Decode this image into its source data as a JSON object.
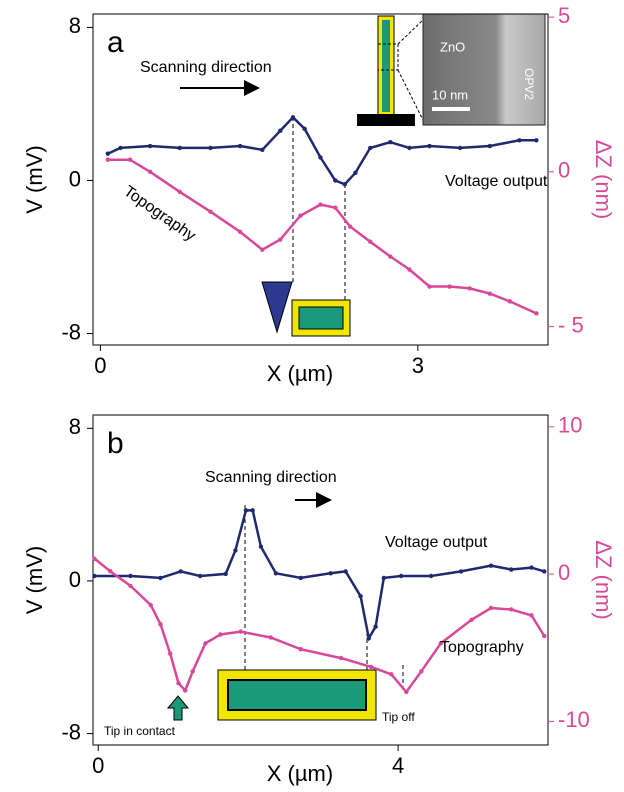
{
  "chart_data": [
    {
      "type": "line",
      "panel_label": "a",
      "xlabel": "X (µm)",
      "ylabel": "V (mV)",
      "y2label": "ΔZ (nm)",
      "xlim": [
        -0.07,
        4.23
      ],
      "xticks": [
        0,
        3
      ],
      "ylim": [
        -8.6,
        8.7
      ],
      "yticks": [
        -8,
        0,
        8
      ],
      "y2lim": [
        -5.6,
        5.1
      ],
      "y2ticks": [
        {
          "value": -5,
          "label": "- 5"
        },
        0,
        5
      ],
      "series": [
        {
          "name": "Voltage output",
          "color": "#1f2a6e",
          "axis": "y",
          "x": [
            0.07,
            0.19,
            0.47,
            0.75,
            1.04,
            1.32,
            1.53,
            1.7,
            1.82,
            1.93,
            2.08,
            2.22,
            2.31,
            2.41,
            2.55,
            2.74,
            2.92,
            3.11,
            3.4,
            3.68,
            3.96,
            4.12
          ],
          "values": [
            1.4,
            1.7,
            1.8,
            1.7,
            1.7,
            1.8,
            1.6,
            2.6,
            3.3,
            2.7,
            1.2,
            0.0,
            -0.2,
            0.4,
            1.7,
            2.0,
            1.7,
            1.8,
            1.7,
            1.8,
            2.1,
            2.1
          ]
        },
        {
          "name": "Topography",
          "color": "#d9479a",
          "axis": "y2",
          "x": [
            0.07,
            0.28,
            0.47,
            0.75,
            1.04,
            1.32,
            1.53,
            1.7,
            1.89,
            2.08,
            2.22,
            2.36,
            2.55,
            2.74,
            2.92,
            3.11,
            3.3,
            3.49,
            3.68,
            3.87,
            4.12
          ],
          "values": [
            0.39,
            0.39,
            0.0,
            -0.65,
            -1.29,
            -1.94,
            -2.52,
            -2.19,
            -1.42,
            -1.06,
            -1.16,
            -1.77,
            -2.26,
            -2.74,
            -3.16,
            -3.71,
            -3.71,
            -3.77,
            -3.94,
            -4.19,
            -4.58
          ]
        }
      ],
      "annotations": [
        "Scanning direction",
        "Voltage output",
        "Topography",
        "ZnO",
        "OPV2",
        "10 nm"
      ]
    },
    {
      "type": "line",
      "panel_label": "b",
      "xlabel": "X (µm)",
      "ylabel": "V (mV)",
      "y2label": "ΔZ (nm)",
      "xlim": [
        -0.07,
        6.0
      ],
      "xticks": [
        0,
        4
      ],
      "ylim": [
        -8.6,
        8.7
      ],
      "yticks": [
        -8,
        0,
        8
      ],
      "y2lim": [
        -11.6,
        10.8
      ],
      "y2ticks": [
        -10,
        0,
        10
      ],
      "series": [
        {
          "name": "Voltage output",
          "color": "#1f2a6e",
          "axis": "y",
          "x": [
            -0.05,
            0.43,
            0.83,
            1.1,
            1.36,
            1.7,
            1.83,
            1.97,
            2.06,
            2.17,
            2.37,
            2.7,
            3.1,
            3.3,
            3.5,
            3.61,
            3.7,
            3.81,
            4.04,
            4.44,
            4.84,
            5.24,
            5.51,
            5.78,
            5.95
          ],
          "values": [
            0.26,
            0.26,
            0.16,
            0.5,
            0.26,
            0.37,
            1.6,
            3.7,
            3.7,
            1.8,
            0.4,
            0.16,
            0.4,
            0.5,
            -0.8,
            -3.0,
            -2.4,
            0.16,
            0.26,
            0.26,
            0.5,
            0.8,
            0.6,
            0.7,
            0.5
          ]
        },
        {
          "name": "Topography",
          "color": "#d9479a",
          "axis": "y2",
          "x": [
            -0.05,
            0.16,
            0.43,
            0.7,
            0.83,
            0.96,
            1.07,
            1.16,
            1.26,
            1.43,
            1.63,
            1.9,
            2.3,
            2.7,
            3.24,
            3.64,
            3.91,
            4.11,
            4.31,
            4.57,
            4.98,
            5.24,
            5.51,
            5.78,
            5.95
          ],
          "values": [
            1.05,
            0.2,
            -0.8,
            -2.1,
            -3.4,
            -5.4,
            -7.4,
            -7.9,
            -6.6,
            -4.7,
            -4.1,
            -3.9,
            -4.3,
            -5.1,
            -5.7,
            -6.3,
            -6.8,
            -8.0,
            -6.6,
            -4.7,
            -3.1,
            -2.3,
            -2.4,
            -2.8,
            -4.2
          ]
        }
      ],
      "annotations": [
        "Scanning direction",
        "Voltage output",
        "Topography",
        "Tip in contact",
        "Tip off"
      ]
    }
  ]
}
